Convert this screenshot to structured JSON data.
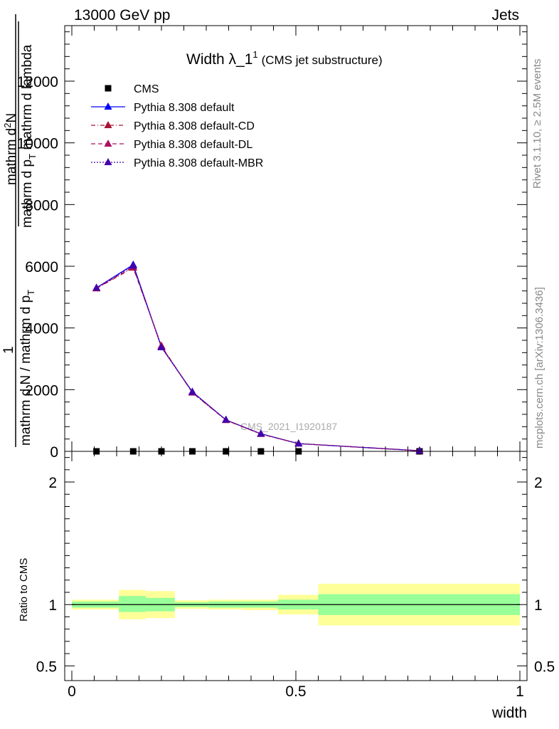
{
  "header": {
    "left": "13000 GeV pp",
    "right": "Jets"
  },
  "side": {
    "top": "Rivet 3.1.10, ≥ 2.5M events",
    "bottom": "mcplots.cern.ch [arXiv:1306.3436]"
  },
  "chart_data": [
    {
      "type": "line",
      "title": "Width λ_1",
      "title_sup": "1",
      "subtitle": "(CMS jet substructure)",
      "watermark": "CMS_2021_I1920187",
      "ylabel": {
        "frac_num": "1",
        "frac_den": "mathrm d N / mathrm d p",
        "frac_den_sub": "T",
        "inner_num": "mathrm d",
        "inner_num_sup": "2",
        "inner_num_tail": "N",
        "inner_den": "mathrm d p",
        "inner_den_sub": "T",
        "inner_den_tail": " mathrm d lambda"
      },
      "xlim": [
        0,
        1
      ],
      "ylim": [
        0,
        13800
      ],
      "yticks": [
        0,
        2000,
        4000,
        6000,
        8000,
        10000,
        12000
      ],
      "ytick_labels": [
        "0",
        "2000",
        "4000",
        "6000",
        "8000",
        "10000",
        "12000"
      ],
      "legend_position": "top-left",
      "series": [
        {
          "name": "CMS",
          "color": "#000000",
          "marker": "square",
          "line": "none",
          "x": [
            0.055,
            0.137,
            0.2,
            0.269,
            0.344,
            0.422,
            0.506,
            0.776
          ],
          "y": [
            0,
            0,
            0,
            0,
            0,
            0,
            0,
            0
          ]
        },
        {
          "name": "Pythia 8.308 default",
          "color": "#0000ff",
          "marker": "triangle",
          "line": "solid",
          "x": [
            0.055,
            0.137,
            0.2,
            0.269,
            0.344,
            0.422,
            0.506,
            0.776
          ],
          "y": [
            5300,
            6050,
            3380,
            1930,
            1020,
            570,
            250,
            20
          ]
        },
        {
          "name": "Pythia 8.308 default-CD",
          "color": "#aa1133",
          "marker": "triangle",
          "line": "dashdot",
          "x": [
            0.055,
            0.137,
            0.2,
            0.269,
            0.344,
            0.422,
            0.506,
            0.776
          ],
          "y": [
            5280,
            5950,
            3420,
            1900,
            1010,
            560,
            250,
            20
          ]
        },
        {
          "name": "Pythia 8.308 default-DL",
          "color": "#aa1166",
          "marker": "triangle",
          "line": "dashed",
          "x": [
            0.055,
            0.137,
            0.2,
            0.269,
            0.344,
            0.422,
            0.506,
            0.776
          ],
          "y": [
            5290,
            5980,
            3400,
            1910,
            1015,
            565,
            250,
            20
          ]
        },
        {
          "name": "Pythia 8.308 default-MBR",
          "color": "#4400aa",
          "marker": "triangle",
          "line": "dotted",
          "x": [
            0.055,
            0.137,
            0.2,
            0.269,
            0.344,
            0.422,
            0.506,
            0.776
          ],
          "y": [
            5300,
            6020,
            3370,
            1920,
            1020,
            568,
            250,
            20
          ]
        }
      ]
    },
    {
      "type": "area",
      "ylabel": "Ratio to CMS",
      "xlabel": "width",
      "xlim": [
        0,
        1
      ],
      "ylim": [
        0.38,
        2.25
      ],
      "yticks": [
        0.5,
        1,
        2
      ],
      "ytick_labels": [
        "0.5",
        "1",
        "2"
      ],
      "xticks": [
        0,
        0.5,
        1
      ],
      "xtick_labels": [
        "0",
        "0.5",
        "1"
      ],
      "reference_line": 1,
      "bands": {
        "colors": {
          "outer": "#ffff99",
          "inner": "#99ff99",
          "line": "#000000"
        },
        "bins": [
          {
            "x0": 0.0,
            "x1": 0.105,
            "outer": [
              0.96,
              1.04
            ],
            "inner": [
              0.975,
              1.025
            ]
          },
          {
            "x0": 0.105,
            "x1": 0.165,
            "outer": [
              0.88,
              1.12
            ],
            "inner": [
              0.94,
              1.07
            ]
          },
          {
            "x0": 0.165,
            "x1": 0.23,
            "outer": [
              0.89,
              1.11
            ],
            "inner": [
              0.945,
              1.055
            ]
          },
          {
            "x0": 0.23,
            "x1": 0.305,
            "outer": [
              0.965,
              1.035
            ],
            "inner": [
              0.98,
              1.02
            ]
          },
          {
            "x0": 0.305,
            "x1": 0.385,
            "outer": [
              0.96,
              1.04
            ],
            "inner": [
              0.975,
              1.025
            ]
          },
          {
            "x0": 0.385,
            "x1": 0.46,
            "outer": [
              0.955,
              1.04
            ],
            "inner": [
              0.975,
              1.025
            ]
          },
          {
            "x0": 0.46,
            "x1": 0.55,
            "outer": [
              0.92,
              1.08
            ],
            "inner": [
              0.96,
              1.04
            ]
          },
          {
            "x0": 0.55,
            "x1": 1.0,
            "outer": [
              0.83,
              1.17
            ],
            "inner": [
              0.915,
              1.085
            ]
          }
        ]
      }
    }
  ]
}
